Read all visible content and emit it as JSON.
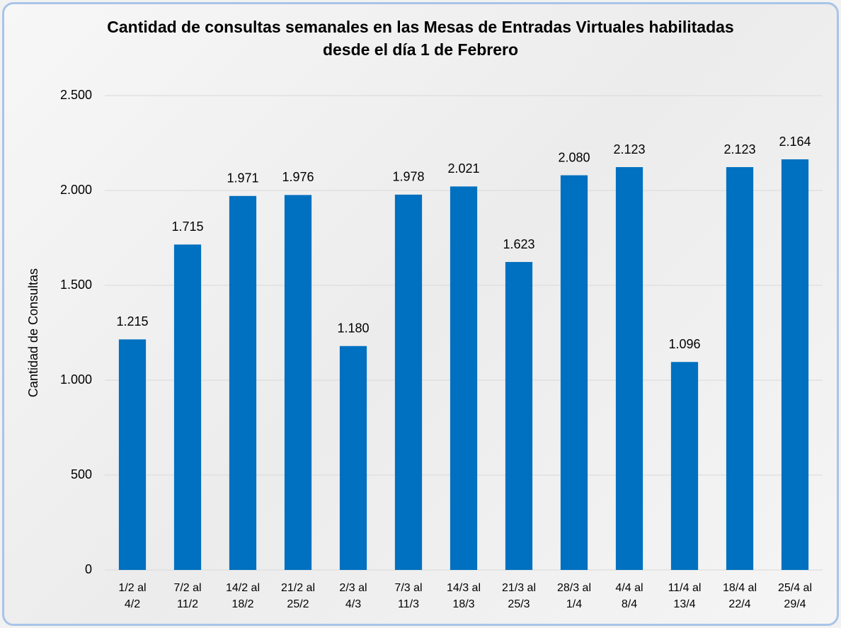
{
  "chart_data": {
    "type": "bar",
    "title": "Cantidad de consultas semanales en las Mesas de Entradas Virtuales habilitadas desde el día 1 de Febrero",
    "y_label": "Cantidad de Consultas",
    "categories": [
      "1/2 al 4/2",
      "7/2 al 11/2",
      "14/2 al 18/2",
      "21/2 al 25/2",
      "2/3 al 4/3",
      "7/3 al 11/3",
      "14/3 al 18/3",
      "21/3 al 25/3",
      "28/3 al 1/4",
      "4/4 al 8/4",
      "11/4 al 13/4",
      "18/4 al 22/4",
      "25/4 al 29/4"
    ],
    "values": [
      1215,
      1715,
      1971,
      1976,
      1180,
      1978,
      2021,
      1623,
      2080,
      2123,
      1096,
      2123,
      2164
    ],
    "value_labels": [
      "1.215",
      "1.715",
      "1.971",
      "1.976",
      "1.180",
      "1.978",
      "2.021",
      "1.623",
      "2.080",
      "2.123",
      "1.096",
      "2.123",
      "2.164"
    ],
    "color": "#0070c0",
    "ylim": [
      0,
      2500
    ],
    "yticks": [
      0,
      500,
      {
        "value": 1000,
        "label": "1.000"
      },
      {
        "value": 1500,
        "label": "1.500"
      },
      {
        "value": 2000,
        "label": "2.000"
      },
      {
        "value": 2500,
        "label": "2.500"
      }
    ],
    "grid": true
  }
}
